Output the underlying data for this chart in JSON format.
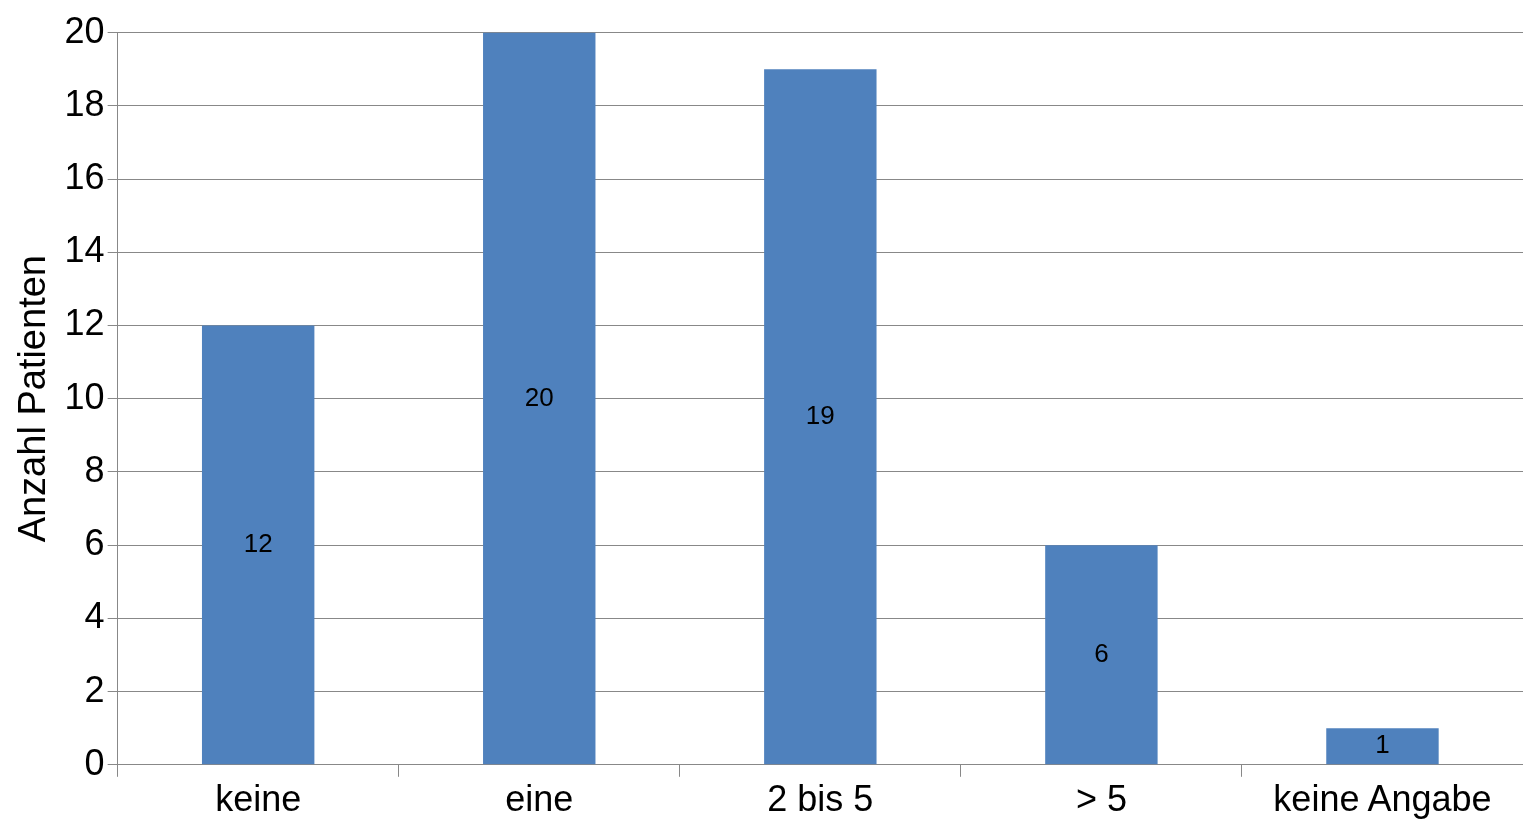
{
  "chart_data": {
    "type": "bar",
    "ylabel": "Anzahl Patienten",
    "categories": [
      "keine",
      "eine",
      "2 bis 5",
      "> 5",
      "keine Angabe"
    ],
    "values": [
      12,
      20,
      19,
      6,
      1
    ],
    "color": "#4f81bd",
    "ylim": [
      0,
      20
    ],
    "yticks": [
      0,
      2,
      4,
      6,
      8,
      10,
      12,
      14,
      16,
      18,
      20
    ],
    "grid": "y",
    "data_labels": true
  }
}
